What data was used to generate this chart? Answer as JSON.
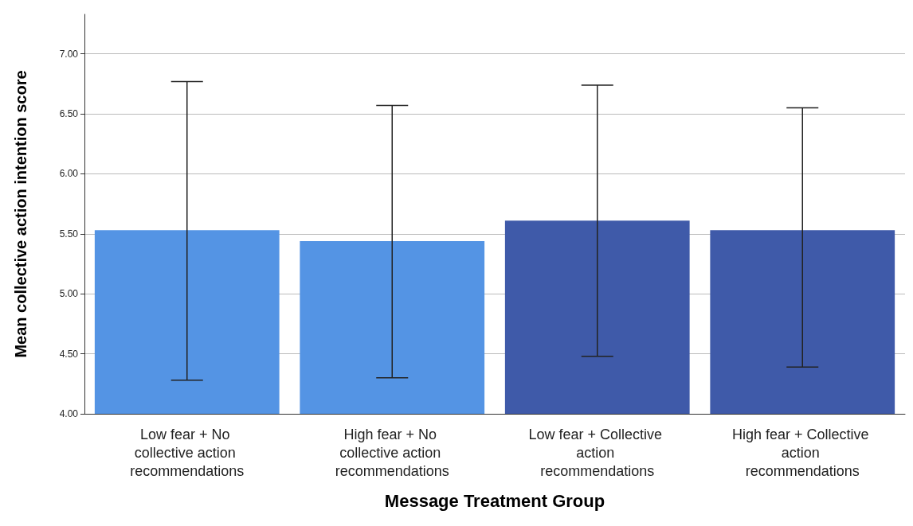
{
  "chart_data": {
    "type": "bar",
    "xlabel": "Message Treatment Group",
    "ylabel": "Mean collective action intention score",
    "categories": [
      "Low fear + No collective action recommendations",
      "High fear + No collective action recommendations",
      "Low fear + Collective action recommendations",
      "High fear + Collective action recommendations"
    ],
    "values": [
      5.53,
      5.44,
      5.61,
      5.53
    ],
    "colors": [
      "#5494e4",
      "#5494e4",
      "#3f5aa9",
      "#3f5aa9"
    ],
    "errors": [
      [
        4.28,
        6.77
      ],
      [
        4.3,
        6.57
      ],
      [
        4.48,
        6.74
      ],
      [
        4.39,
        6.55
      ]
    ],
    "ylim": [
      4,
      7.33
    ],
    "yticks": [
      {
        "value": 4,
        "label": "4.00"
      },
      {
        "value": 4.5,
        "label": "4.50"
      },
      {
        "value": 5,
        "label": "5.00"
      },
      {
        "value": 5.5,
        "label": "5.50"
      },
      {
        "value": 6,
        "label": "6.00"
      },
      {
        "value": 6.5,
        "label": "6.50"
      },
      {
        "value": 7,
        "label": "7.00"
      }
    ],
    "grid": "y"
  }
}
